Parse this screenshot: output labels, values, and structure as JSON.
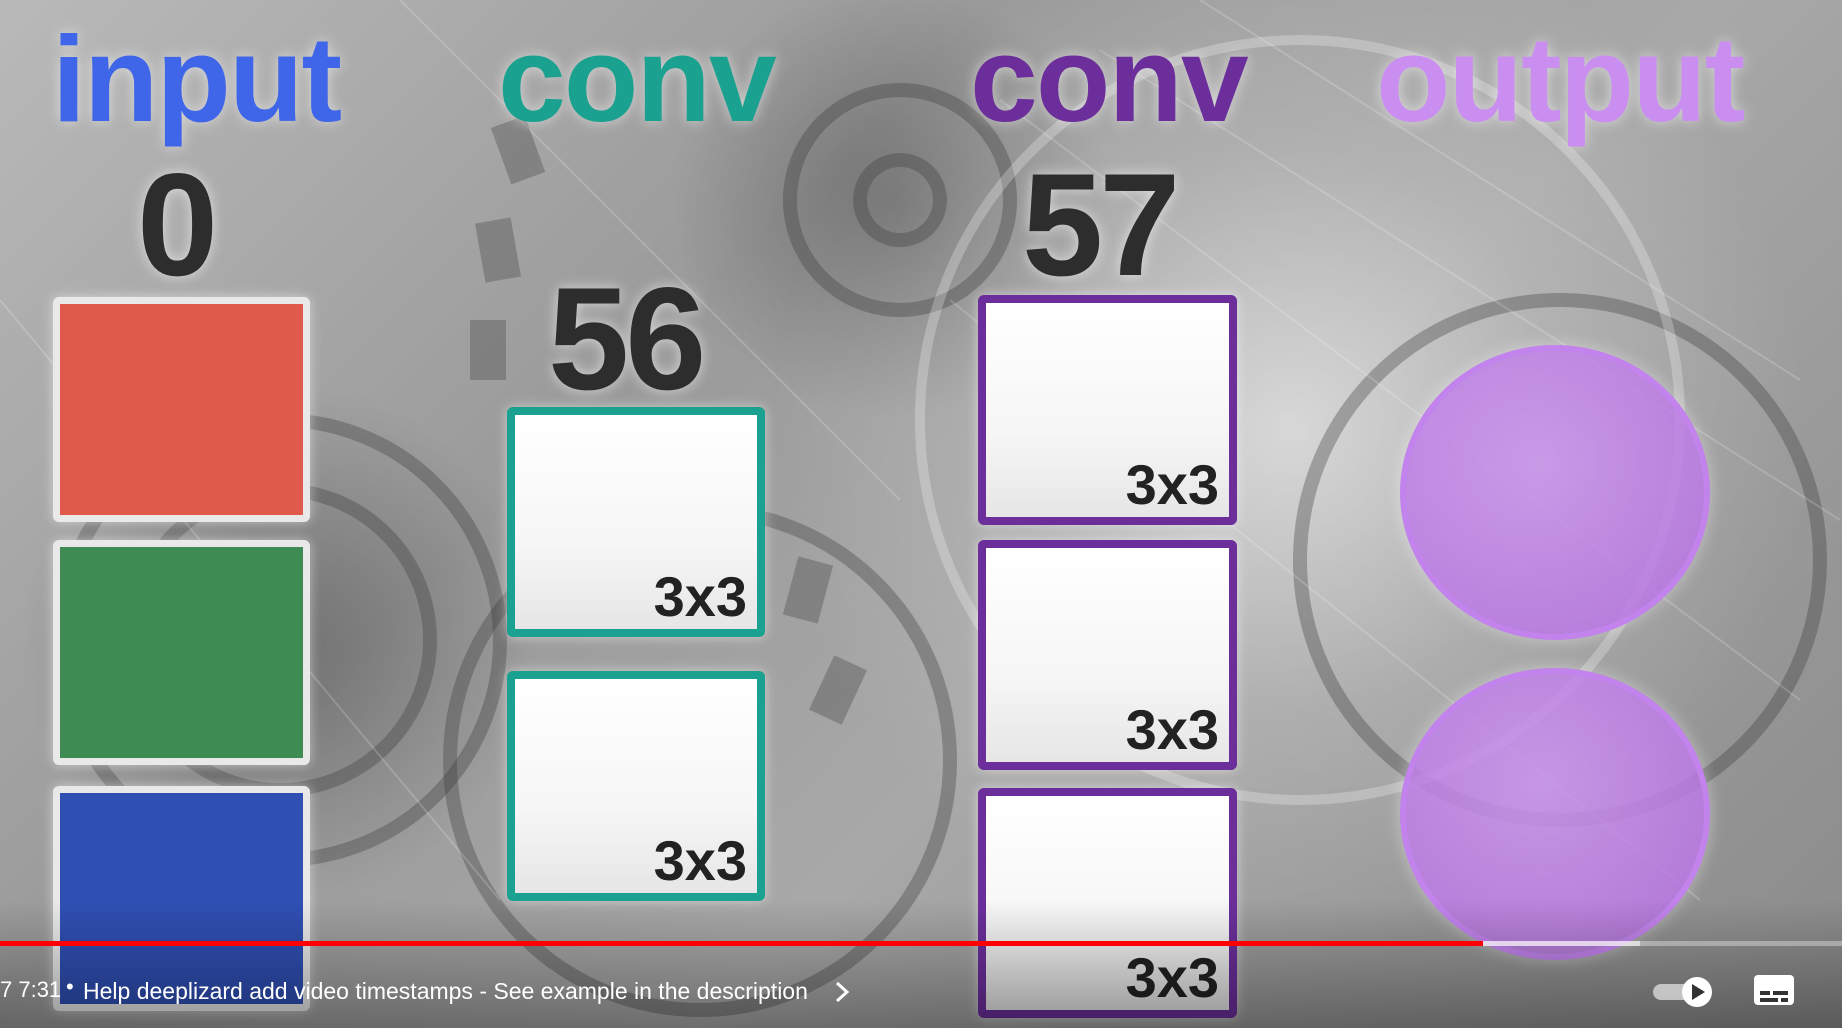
{
  "diagram": {
    "columns": [
      {
        "title": "input",
        "title_color": "#3f66e8",
        "count": "0"
      },
      {
        "title": "conv",
        "title_color": "#1aa18f",
        "count": "56",
        "filters": [
          "3x3",
          "3x3"
        ]
      },
      {
        "title": "conv",
        "title_color": "#6b2e9b",
        "count": "57",
        "filters": [
          "3x3",
          "3x3",
          "3x3"
        ]
      },
      {
        "title": "output",
        "title_color": "#c98ef0"
      }
    ],
    "input_channel_colors": [
      "#e05a4c",
      "#3e8c54",
      "#2f4fb3"
    ],
    "output_color": "#c283ec"
  },
  "player": {
    "time": "7 7:31",
    "separator": "•",
    "chapter_prompt": "Help deeplizard add video timestamps - See example in the description",
    "progress": 0.805,
    "autoplay_on": true
  },
  "icons": {
    "chevron": "chevron-right-icon",
    "autoplay": "autoplay-toggle-icon",
    "captions": "captions-icon"
  }
}
